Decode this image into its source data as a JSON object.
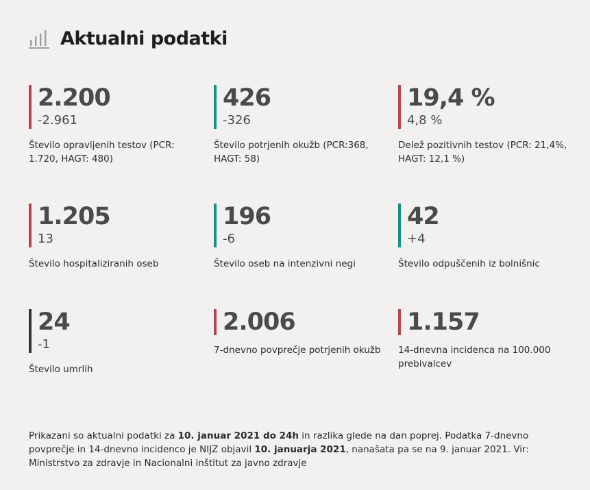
{
  "header": {
    "title": "Aktualni podatki",
    "icon": "bar-chart-icon"
  },
  "colors": {
    "red": "#b5444f",
    "teal": "#139280",
    "dark": "#333333"
  },
  "stats": [
    {
      "value": "2.200",
      "change": "-2.961",
      "label": "Število opravljenih testov (PCR: 1.720, HAGT: 480)",
      "color": "#b5444f"
    },
    {
      "value": "426",
      "change": "-326",
      "label": "Število potrjenih okužb (PCR:368, HAGT: 58)",
      "color": "#139280"
    },
    {
      "value": "19,4 %",
      "change": "4,8 %",
      "label": "Delež pozitivnih testov (PCR: 21,4%, HAGT: 12,1 %)",
      "color": "#b5444f"
    },
    {
      "value": "1.205",
      "change": "13",
      "label": "Število hospitaliziranih oseb",
      "color": "#b5444f"
    },
    {
      "value": "196",
      "change": "-6",
      "label": "Število oseb na intenzivni negi",
      "color": "#139280"
    },
    {
      "value": "42",
      "change": "+4",
      "label": "Število odpuščenih iz bolnišnic",
      "color": "#139280"
    },
    {
      "value": "24",
      "change": "-1",
      "label": "Število umrlih",
      "color": "#333333"
    },
    {
      "value": "2.006",
      "change": "",
      "label": "7-dnevno povprečje potrjenih okužb",
      "color": "#b5444f"
    },
    {
      "value": "1.157",
      "change": "",
      "label": "14-dnevna incidenca na 100.000 prebivalcev",
      "color": "#b5444f"
    }
  ],
  "footer": {
    "part1": "Prikazani so aktualni podatki za ",
    "bold1": "10. januar 2021 do 24h",
    "part2": " in razlika glede na dan poprej. Podatka 7-dnevno povprečje in 14-dnevno incidenco je NIJZ objavil ",
    "bold2": "10. januarja 2021",
    "part3": ", nanašata pa se na 9. januar 2021. Vir: Ministrstvo za zdravje in Nacionalni inštitut za javno zdravje"
  }
}
